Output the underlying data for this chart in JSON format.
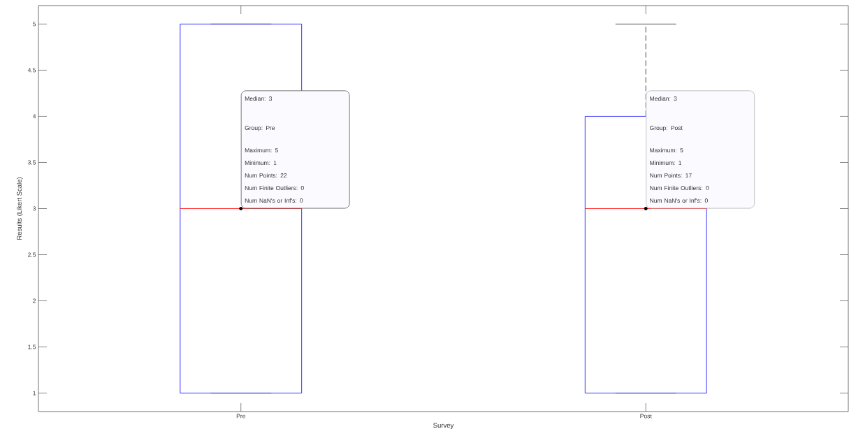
{
  "chart_data": {
    "type": "box",
    "xlabel": "Survey",
    "ylabel": "Results (Likert Scale)",
    "categories": [
      "Pre",
      "Post"
    ],
    "series": [
      {
        "color": "#0000ff",
        "boxes": [
          {
            "low": 1,
            "q1": 1,
            "median": 3,
            "q3": 5,
            "high": 5
          },
          {
            "low": 1,
            "q1": 1,
            "median": 3,
            "q3": 4,
            "high": 5
          }
        ]
      }
    ],
    "ylim": [
      0.8,
      5.2
    ],
    "yticks": [
      1,
      1.5,
      2,
      2.5,
      3,
      3.5,
      4,
      4.5,
      5
    ],
    "grid": false,
    "annotations": [
      "Median: 3",
      "Group: Pre",
      "Maximum: 5",
      "Minimum: 1",
      "Num Points: 22",
      "Num Finite Outliers: 0",
      "Num NaN's or Inf's: 0",
      "Median: 3",
      "Group: Post",
      "Maximum: 5",
      "Minimum: 1",
      "Num Points: 17",
      "Num Finite Outliers: 0",
      "Num NaN's or Inf's: 0"
    ]
  }
}
